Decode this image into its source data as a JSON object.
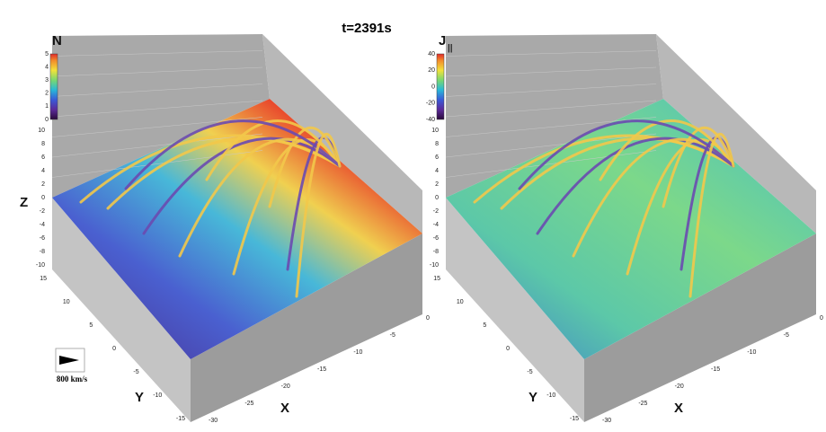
{
  "title": "t=2391s",
  "panels": [
    {
      "colorbar_label": "N",
      "colorbar_ticks": [
        0,
        1,
        2,
        3,
        4,
        5
      ],
      "z_label": "Z",
      "y_label": "Y",
      "x_label": "X",
      "z_ticks": [
        10,
        8,
        6,
        4,
        2,
        0,
        -2,
        -4,
        -6,
        -8,
        -10
      ],
      "y_ticks": [
        15,
        10,
        5,
        0,
        -5,
        -10,
        -15
      ],
      "x_ticks": [
        0,
        -5,
        -10,
        -15,
        -20,
        -25,
        -30
      ]
    },
    {
      "colorbar_label": "J",
      "colorbar_subscript": "||",
      "colorbar_ticks": [
        -40,
        -20,
        0,
        20,
        40
      ],
      "y_label": "Y",
      "x_label": "X",
      "z_ticks": [
        10,
        8,
        6,
        4,
        2,
        0,
        -2,
        -4,
        -6,
        -8,
        -10
      ],
      "y_ticks": [
        15,
        10,
        5,
        0,
        -5,
        -10,
        -15
      ],
      "x_ticks": [
        0,
        -5,
        -10,
        -15,
        -20,
        -25,
        -30
      ]
    }
  ],
  "velocity_scale": "800 km/s"
}
